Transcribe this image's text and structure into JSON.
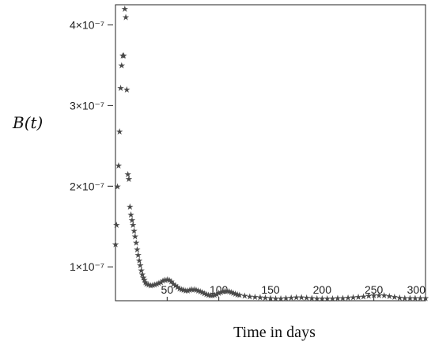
{
  "chart_data": {
    "type": "scatter",
    "xlabel": "Time in days",
    "ylabel": "B(t)",
    "xlim": [
      0,
      300
    ],
    "ylim": [
      5.8e-08,
      4.25e-07
    ],
    "xticks": [
      {
        "value": 50,
        "label": "50"
      },
      {
        "value": 100,
        "label": "100"
      },
      {
        "value": 150,
        "label": "150"
      },
      {
        "value": 200,
        "label": "200"
      },
      {
        "value": 250,
        "label": "250"
      },
      {
        "value": 300,
        "label": "300"
      }
    ],
    "yticks": [
      {
        "value": 1e-07,
        "label": "1×10⁻⁷"
      },
      {
        "value": 2e-07,
        "label": "2×10⁻⁷"
      },
      {
        "value": 3e-07,
        "label": "3×10⁻⁷"
      },
      {
        "value": 4e-07,
        "label": "4×10⁻⁷"
      }
    ],
    "marker": "★",
    "marker_color": "#4a4a4a",
    "series": [
      {
        "x": [
          0,
          1,
          2,
          3,
          4,
          5,
          6,
          7,
          8,
          9,
          10,
          11,
          12,
          13,
          14,
          15,
          16,
          17,
          18,
          19,
          20,
          21,
          22,
          23,
          24,
          25,
          26,
          27,
          28,
          29,
          30,
          32,
          34,
          36,
          38,
          40,
          42,
          44,
          46,
          48,
          50,
          52,
          54,
          56,
          58,
          60,
          62,
          64,
          66,
          68,
          70,
          72,
          74,
          76,
          78,
          80,
          82,
          84,
          86,
          88,
          90,
          92,
          94,
          96,
          98,
          100,
          102,
          104,
          106,
          108,
          110,
          112,
          114,
          116,
          118,
          120,
          125,
          130,
          135,
          140,
          145,
          150,
          155,
          160,
          165,
          170,
          175,
          180,
          185,
          190,
          195,
          200,
          205,
          210,
          215,
          220,
          225,
          230,
          235,
          240,
          245,
          250,
          255,
          260,
          265,
          270,
          275,
          280,
          285,
          290,
          295,
          300
        ],
        "y": [
          1.28e-07,
          1.52e-07,
          2e-07,
          2.26e-07,
          2.68e-07,
          3.22e-07,
          3.5e-07,
          3.62e-07,
          3.62e-07,
          4.2e-07,
          4.1e-07,
          3.2e-07,
          2.15e-07,
          2.09e-07,
          1.75e-07,
          1.65e-07,
          1.58e-07,
          1.52e-07,
          1.45e-07,
          1.38e-07,
          1.3e-07,
          1.22e-07,
          1.15e-07,
          1.08e-07,
          1.02e-07,
          9.6e-08,
          9.1e-08,
          8.7e-08,
          8.4e-08,
          8.1e-08,
          7.9e-08,
          7.8e-08,
          7.7e-08,
          7.75e-08,
          7.8e-08,
          7.9e-08,
          8e-08,
          8.1e-08,
          8.3e-08,
          8.4e-08,
          8.45e-08,
          8.4e-08,
          8.2e-08,
          7.9e-08,
          7.7e-08,
          7.5e-08,
          7.3e-08,
          7.2e-08,
          7.15e-08,
          7.1e-08,
          7.1e-08,
          7.15e-08,
          7.2e-08,
          7.2e-08,
          7.15e-08,
          7.1e-08,
          7e-08,
          6.9e-08,
          6.75e-08,
          6.65e-08,
          6.55e-08,
          6.5e-08,
          6.5e-08,
          6.55e-08,
          6.65e-08,
          6.8e-08,
          6.9e-08,
          7e-08,
          7.05e-08,
          7.05e-08,
          7e-08,
          6.9e-08,
          6.8e-08,
          6.7e-08,
          6.6e-08,
          6.55e-08,
          6.45e-08,
          6.35e-08,
          6.3e-08,
          6.25e-08,
          6.2e-08,
          6.15e-08,
          6.1e-08,
          6.1e-08,
          6.12e-08,
          6.18e-08,
          6.22e-08,
          6.23e-08,
          6.2e-08,
          6.15e-08,
          6.1e-08,
          6.08e-08,
          6.08e-08,
          6.1e-08,
          6.13e-08,
          6.16e-08,
          6.2e-08,
          6.25e-08,
          6.3e-08,
          6.36e-08,
          6.42e-08,
          6.48e-08,
          6.5e-08,
          6.47e-08,
          6.38e-08,
          6.28e-08,
          6.2e-08,
          6.15e-08,
          6.12e-08,
          6.12e-08,
          6.14e-08,
          6.16e-08
        ]
      }
    ]
  }
}
